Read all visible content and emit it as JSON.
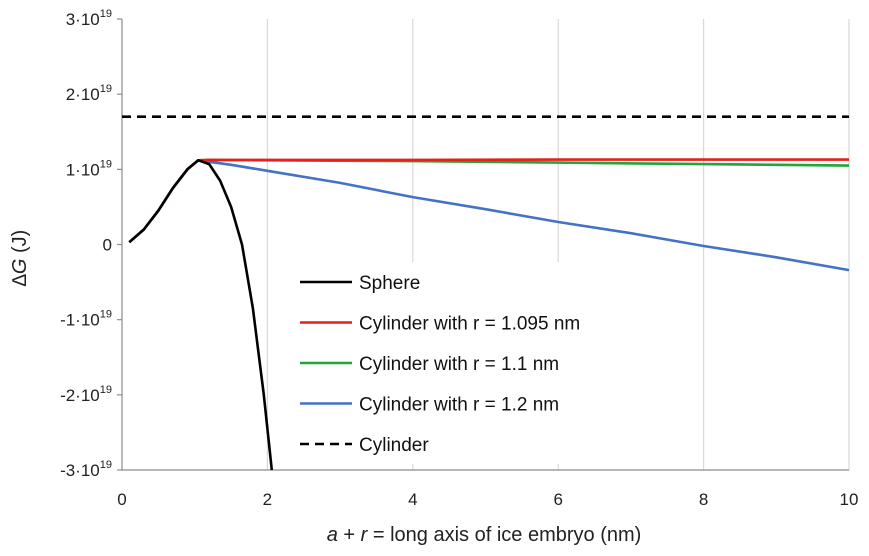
{
  "chart_data": {
    "type": "line",
    "title": "",
    "xlabel": {
      "var_a": "a",
      "plus": " + ",
      "var_r": "r",
      "rest": " = long axis of ice embryo (nm)"
    },
    "ylabel": {
      "symbol": "∆G",
      "unit": " (J)"
    },
    "xlim": [
      0,
      10
    ],
    "ylim": [
      -3e-19,
      3e-19
    ],
    "x_ticks": [
      0,
      2,
      4,
      6,
      8,
      10
    ],
    "x_tick_labels": [
      "0",
      "2",
      "4",
      "6",
      "8",
      "10"
    ],
    "y_ticks": [
      {
        "value": 3e-19,
        "mantissa": "3·10",
        "exp": "19"
      },
      {
        "value": 2e-19,
        "mantissa": "2·10",
        "exp": "19"
      },
      {
        "value": 1e-19,
        "mantissa": "1·10",
        "exp": "19"
      },
      {
        "value": 0,
        "mantissa": "0",
        "exp": ""
      },
      {
        "value": -1e-19,
        "mantissa": "-1·10",
        "exp": "19"
      },
      {
        "value": -2e-19,
        "mantissa": "-2·10",
        "exp": "19"
      },
      {
        "value": -3e-19,
        "mantissa": "-3·10",
        "exp": "19"
      }
    ],
    "grid": {
      "vertical": true,
      "horizontal": false
    },
    "legend_position": "bottom-center",
    "series": [
      {
        "name": "Sphere",
        "color": "#000000",
        "dash": "solid",
        "points": [
          [
            0.1,
            3e-21
          ],
          [
            0.3,
            2e-20
          ],
          [
            0.5,
            4.5e-20
          ],
          [
            0.7,
            7.5e-20
          ],
          [
            0.9,
            1e-19
          ],
          [
            1.05,
            1.12e-19
          ],
          [
            1.2,
            1.07e-19
          ],
          [
            1.35,
            8.5e-20
          ],
          [
            1.5,
            5e-20
          ],
          [
            1.65,
            0.0
          ],
          [
            1.8,
            -8.5e-20
          ],
          [
            1.95,
            -2e-19
          ],
          [
            2.06,
            -3e-19
          ]
        ]
      },
      {
        "name": "Cylinder with r = 1.095 nm",
        "color": "#e3201b",
        "dash": "solid",
        "points": [
          [
            0.1,
            3e-21
          ],
          [
            0.3,
            2e-20
          ],
          [
            0.5,
            4.5e-20
          ],
          [
            0.7,
            7.5e-20
          ],
          [
            0.9,
            1e-19
          ],
          [
            1.05,
            1.12e-19
          ],
          [
            1.2,
            1.125e-19
          ],
          [
            2.0,
            1.125e-19
          ],
          [
            4.0,
            1.125e-19
          ],
          [
            6.0,
            1.13e-19
          ],
          [
            8.0,
            1.13e-19
          ],
          [
            10.0,
            1.13e-19
          ]
        ]
      },
      {
        "name": "Cylinder with r = 1.1 nm",
        "color": "#22a53a",
        "dash": "solid",
        "points": [
          [
            0.1,
            3e-21
          ],
          [
            0.3,
            2e-20
          ],
          [
            0.5,
            4.5e-20
          ],
          [
            0.7,
            7.5e-20
          ],
          [
            0.9,
            1e-19
          ],
          [
            1.05,
            1.12e-19
          ],
          [
            1.2,
            1.125e-19
          ],
          [
            2.0,
            1.12e-19
          ],
          [
            4.0,
            1.11e-19
          ],
          [
            6.0,
            1.09e-19
          ],
          [
            8.0,
            1.07e-19
          ],
          [
            10.0,
            1.05e-19
          ]
        ]
      },
      {
        "name": "Cylinder with r = 1.2 nm",
        "color": "#4472c4",
        "dash": "solid",
        "points": [
          [
            0.1,
            3e-21
          ],
          [
            0.3,
            2e-20
          ],
          [
            0.5,
            4.5e-20
          ],
          [
            0.7,
            7.5e-20
          ],
          [
            0.9,
            1e-19
          ],
          [
            1.05,
            1.12e-19
          ],
          [
            1.5,
            1.06e-19
          ],
          [
            2.0,
            9.8e-20
          ],
          [
            3.0,
            8.2e-20
          ],
          [
            4.0,
            6.3e-20
          ],
          [
            5.0,
            4.7e-20
          ],
          [
            6.0,
            3e-20
          ],
          [
            7.0,
            1.5e-20
          ],
          [
            8.0,
            -2e-21
          ],
          [
            9.0,
            -1.7e-20
          ],
          [
            10.0,
            -3.4e-20
          ]
        ]
      },
      {
        "name": "Cylinder",
        "color": "#000000",
        "dash": "dashed",
        "points": [
          [
            0.0,
            1.7e-19
          ],
          [
            10.0,
            1.7e-19
          ]
        ]
      }
    ]
  }
}
